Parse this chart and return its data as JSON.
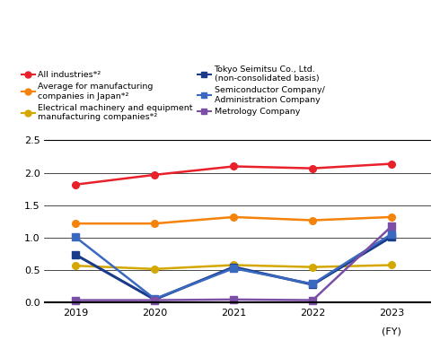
{
  "years": [
    2019,
    2020,
    2021,
    2022,
    2023
  ],
  "series_order": [
    "all_industries",
    "avg_manufacturing",
    "electrical_machinery",
    "tokyo_seimitsu",
    "semiconductor",
    "metrology"
  ],
  "series": {
    "all_industries": {
      "label": "All industries*²",
      "values": [
        1.82,
        1.97,
        2.1,
        2.07,
        2.14
      ],
      "color": "#e8212a",
      "marker": "o",
      "linewidth": 1.8,
      "markersize": 5.5
    },
    "avg_manufacturing": {
      "label": "Average for manufacturing\ncompanies in Japan*²",
      "values": [
        1.22,
        1.22,
        1.32,
        1.27,
        1.32
      ],
      "color": "#f5820a",
      "marker": "o",
      "linewidth": 1.8,
      "markersize": 5.5
    },
    "electrical_machinery": {
      "label": "Electrical machinery and equipment\nmanufacturing companies*²",
      "values": [
        0.57,
        0.52,
        0.58,
        0.55,
        0.58
      ],
      "color": "#d4a800",
      "marker": "o",
      "linewidth": 1.8,
      "markersize": 5.5
    },
    "tokyo_seimitsu": {
      "label": "Tokyo Seimitsu Co., Ltd.\n(non-consolidated basis)",
      "values": [
        0.74,
        0.05,
        0.55,
        0.28,
        1.02
      ],
      "color": "#1a3a8a",
      "marker": "s",
      "linewidth": 2.2,
      "markersize": 5.5
    },
    "semiconductor": {
      "label": "Semiconductor Company/\nAdministration Company",
      "values": [
        1.01,
        0.06,
        0.53,
        0.29,
        1.06
      ],
      "color": "#3a6abf",
      "marker": "s",
      "linewidth": 1.8,
      "markersize": 5.5
    },
    "metrology": {
      "label": "Metrology Company",
      "values": [
        0.04,
        0.04,
        0.05,
        0.04,
        1.18
      ],
      "color": "#7b4fa6",
      "marker": "s",
      "linewidth": 1.8,
      "markersize": 5.5
    }
  },
  "legend_left_order": [
    "all_industries",
    "electrical_machinery",
    "semiconductor"
  ],
  "legend_right_order": [
    "avg_manufacturing",
    "tokyo_seimitsu",
    "metrology"
  ],
  "ylim": [
    -0.05,
    2.7
  ],
  "yticks": [
    0.0,
    0.5,
    1.0,
    1.5,
    2.0,
    2.5
  ],
  "xticks": [
    2019,
    2020,
    2021,
    2022,
    2023
  ],
  "xlabel_extra": "(FY)",
  "background_color": "#ffffff",
  "fontsize_tick": 8.0,
  "fontsize_legend": 6.8
}
